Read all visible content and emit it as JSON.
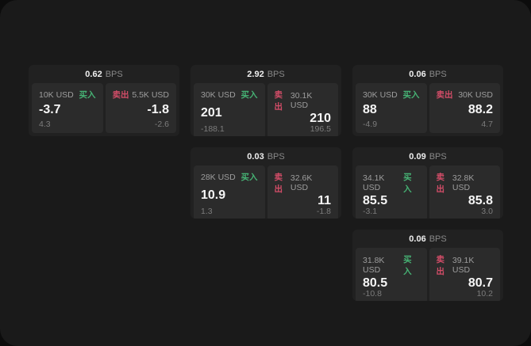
{
  "labels": {
    "bps": "BPS",
    "buy": "买入",
    "sell": "卖出"
  },
  "colors": {
    "background": "#1a1a1a",
    "card": "#212121",
    "panel": "#2b2b2b",
    "buy_green": "#46b274",
    "sell_red": "#d34d68"
  },
  "cards": [
    {
      "bps": "0.62",
      "buy": {
        "amount": "10K USD",
        "price": "-3.7",
        "delta": "4.3"
      },
      "sell": {
        "amount": "5.5K USD",
        "price": "-1.8",
        "delta": "-2.6"
      }
    },
    {
      "bps": "2.92",
      "buy": {
        "amount": "30K USD",
        "price": "201",
        "delta": "-188.1"
      },
      "sell": {
        "amount": "30.1K USD",
        "price": "210",
        "delta": "196.5"
      }
    },
    {
      "bps": "0.06",
      "buy": {
        "amount": "30K USD",
        "price": "88",
        "delta": "-4.9"
      },
      "sell": {
        "amount": "30K USD",
        "price": "88.2",
        "delta": "4.7"
      }
    },
    {
      "bps": "0.03",
      "buy": {
        "amount": "28K USD",
        "price": "10.9",
        "delta": "1.3"
      },
      "sell": {
        "amount": "32.6K USD",
        "price": "11",
        "delta": "-1.8"
      }
    },
    {
      "bps": "0.09",
      "buy": {
        "amount": "34.1K USD",
        "price": "85.5",
        "delta": "-3.1"
      },
      "sell": {
        "amount": "32.8K USD",
        "price": "85.8",
        "delta": "3.0"
      }
    },
    {
      "bps": "0.06",
      "buy": {
        "amount": "31.8K USD",
        "price": "80.5",
        "delta": "-10.8"
      },
      "sell": {
        "amount": "39.1K USD",
        "price": "80.7",
        "delta": "10.2"
      }
    }
  ]
}
